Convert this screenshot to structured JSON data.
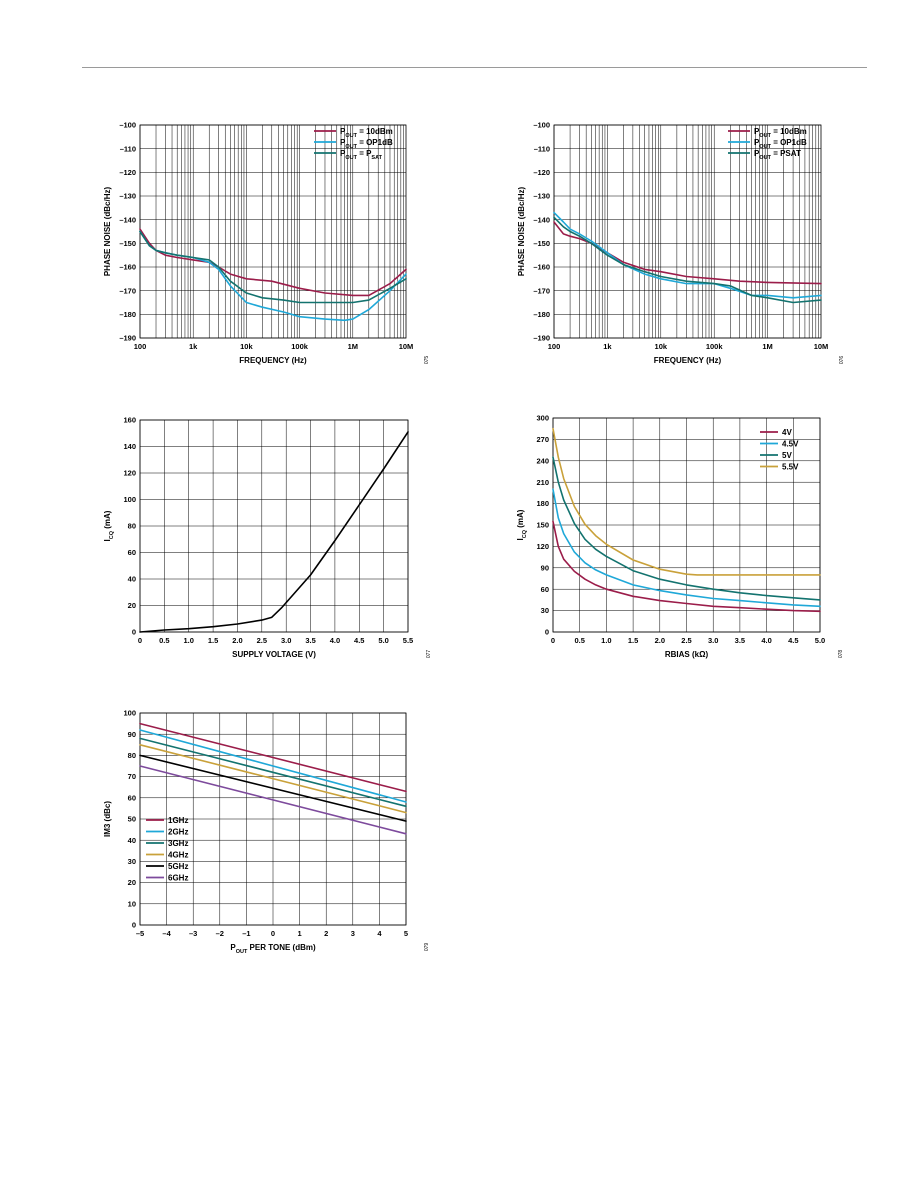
{
  "colors": {
    "maroon": "#9b1d4a",
    "cyan": "#1fa8d8",
    "teal": "#13736f",
    "gold": "#c9a13a",
    "black": "#000000",
    "purple": "#7d4a9c",
    "grid": "#000000"
  },
  "chart_data": [
    {
      "id": "c1",
      "type": "line",
      "xscale": "log",
      "xlim": [
        100,
        10000000
      ],
      "ylim": [
        -190,
        -100
      ],
      "xticks": [
        100,
        1000,
        10000,
        100000,
        1000000,
        10000000
      ],
      "xticklabels": [
        "100",
        "1k",
        "10k",
        "100k",
        "1M",
        "10M"
      ],
      "yticks": [
        -190,
        -180,
        -170,
        -160,
        -150,
        -140,
        -130,
        -120,
        -110,
        -100
      ],
      "yticklabels": [
        "–190",
        "–180",
        "–170",
        "–160",
        "–150",
        "–140",
        "–130",
        "–120",
        "–110",
        "–100"
      ],
      "xlabel": "FREQUENCY (Hz)",
      "ylabel": "PHASE NOISE (dBc/Hz)",
      "note": "075",
      "legend_position": "top-right",
      "series": [
        {
          "name": "P_OUT = 10dBm",
          "legend": [
            {
              "t": "P"
            },
            {
              "t": "OUT",
              "sub": true
            },
            {
              "t": " = 10dBm"
            }
          ],
          "color": "maroon",
          "x": [
            100,
            150,
            200,
            300,
            500,
            1000,
            2000,
            3000,
            5000,
            10000,
            30000,
            100000,
            300000,
            1000000,
            2000000,
            5000000,
            10000000
          ],
          "y": [
            -144,
            -150,
            -153,
            -155,
            -156,
            -157,
            -158,
            -160,
            -163,
            -165,
            -166,
            -169,
            -171,
            -172,
            -172,
            -167,
            -161
          ]
        },
        {
          "name": "P_OUT = OP1dB",
          "legend": [
            {
              "t": "P"
            },
            {
              "t": "OUT",
              "sub": true
            },
            {
              "t": " = OP1dB"
            }
          ],
          "color": "cyan",
          "x": [
            100,
            150,
            200,
            300,
            500,
            1000,
            2000,
            3000,
            5000,
            10000,
            20000,
            50000,
            100000,
            300000,
            700000,
            1000000,
            2000000,
            5000000,
            10000000
          ],
          "y": [
            -145,
            -151,
            -153,
            -154,
            -155,
            -156,
            -158,
            -161,
            -168,
            -175,
            -177,
            -179,
            -181,
            -182,
            -182.5,
            -182,
            -178,
            -170,
            -163
          ]
        },
        {
          "name": "P_OUT = P_SAT",
          "legend": [
            {
              "t": "P"
            },
            {
              "t": "OUT",
              "sub": true
            },
            {
              "t": " = P"
            },
            {
              "t": "SAT",
              "sub": true
            }
          ],
          "color": "teal",
          "x": [
            100,
            150,
            200,
            300,
            500,
            1000,
            2000,
            3000,
            5000,
            10000,
            20000,
            50000,
            100000,
            300000,
            1000000,
            2000000,
            5000000,
            10000000
          ],
          "y": [
            -145,
            -151,
            -153,
            -154,
            -155,
            -156,
            -157,
            -160,
            -166,
            -171,
            -173,
            -174,
            -175,
            -175,
            -175,
            -174,
            -169,
            -165
          ]
        }
      ]
    },
    {
      "id": "c2",
      "type": "line",
      "xscale": "log",
      "xlim": [
        100,
        10000000
      ],
      "ylim": [
        -190,
        -100
      ],
      "xticks": [
        100,
        1000,
        10000,
        100000,
        1000000,
        10000000
      ],
      "xticklabels": [
        "100",
        "1k",
        "10k",
        "100k",
        "1M",
        "10M"
      ],
      "yticks": [
        -190,
        -180,
        -170,
        -160,
        -150,
        -140,
        -130,
        -120,
        -110,
        -100
      ],
      "yticklabels": [
        "–190",
        "–180",
        "–170",
        "–160",
        "–150",
        "–140",
        "–130",
        "–120",
        "–110",
        "–100"
      ],
      "xlabel": "FREQUENCY (Hz)",
      "ylabel": "PHASE NOISE (dBc/Hz)",
      "note": "076",
      "legend_position": "top-right",
      "series": [
        {
          "name": "P_OUT = 10dBm",
          "legend": [
            {
              "t": "P"
            },
            {
              "t": "OUT",
              "sub": true
            },
            {
              "t": " = 10dBm"
            }
          ],
          "color": "maroon",
          "x": [
            100,
            150,
            200,
            300,
            500,
            1000,
            2000,
            5000,
            10000,
            30000,
            100000,
            300000,
            1000000,
            10000000
          ],
          "y": [
            -141,
            -146,
            -147,
            -148,
            -150,
            -154,
            -158,
            -161,
            -162,
            -164,
            -165,
            -166,
            -166.5,
            -167
          ]
        },
        {
          "name": "P_OUT = OP1dB",
          "legend": [
            {
              "t": "P"
            },
            {
              "t": "OUT",
              "sub": true
            },
            {
              "t": " = OP1dB"
            }
          ],
          "color": "cyan",
          "x": [
            100,
            150,
            200,
            300,
            500,
            1000,
            2000,
            5000,
            10000,
            30000,
            100000,
            200000,
            500000,
            1000000,
            3000000,
            10000000
          ],
          "y": [
            -137,
            -141,
            -144,
            -146,
            -149,
            -154,
            -159,
            -163,
            -165,
            -167,
            -167,
            -169,
            -172,
            -172,
            -173,
            -172
          ]
        },
        {
          "name": "P_OUT = PSAT",
          "legend": [
            {
              "t": "P"
            },
            {
              "t": "OUT",
              "sub": true
            },
            {
              "t": " = PSAT"
            }
          ],
          "color": "teal",
          "x": [
            100,
            150,
            200,
            300,
            500,
            1000,
            2000,
            5000,
            10000,
            30000,
            100000,
            200000,
            500000,
            1000000,
            3000000,
            10000000
          ],
          "y": [
            -139,
            -143,
            -145,
            -147,
            -150,
            -155,
            -159,
            -162,
            -164,
            -166,
            -167,
            -168,
            -172,
            -173,
            -175,
            -174
          ]
        }
      ]
    },
    {
      "id": "c3",
      "type": "line",
      "xscale": "linear",
      "xlim": [
        0,
        5.5
      ],
      "ylim": [
        0,
        160
      ],
      "xticks": [
        0,
        0.5,
        1.0,
        1.5,
        2.0,
        2.5,
        3.0,
        3.5,
        4.0,
        4.5,
        5.0,
        5.5
      ],
      "xticklabels": [
        "0",
        "0.5",
        "1.0",
        "1.5",
        "2.0",
        "2.5",
        "3.0",
        "3.5",
        "4.0",
        "4.5",
        "5.0",
        "5.5"
      ],
      "yticks": [
        0,
        20,
        40,
        60,
        80,
        100,
        120,
        140,
        160
      ],
      "yticklabels": [
        "0",
        "20",
        "40",
        "60",
        "80",
        "100",
        "120",
        "140",
        "160"
      ],
      "xlabel": "SUPPLY VOLTAGE (V)",
      "ylabel": "I_CQ (mA)",
      "ylabel_parts": [
        {
          "t": "I"
        },
        {
          "t": "CQ",
          "sub": true
        },
        {
          "t": " (mA)"
        }
      ],
      "note": "077",
      "series": [
        {
          "color": "black",
          "x": [
            0,
            0.5,
            1.0,
            1.5,
            2.0,
            2.5,
            2.7,
            2.9,
            3.5,
            4.0,
            4.5,
            5.0,
            5.5
          ],
          "y": [
            0,
            1.5,
            2.5,
            4,
            6,
            9,
            11,
            18,
            43,
            69,
            96,
            123,
            151
          ]
        }
      ]
    },
    {
      "id": "c4",
      "type": "line",
      "xscale": "linear",
      "xlim": [
        0,
        5.0
      ],
      "ylim": [
        0,
        300
      ],
      "xticks": [
        0,
        0.5,
        1.0,
        1.5,
        2.0,
        2.5,
        3.0,
        3.5,
        4.0,
        4.5,
        5.0
      ],
      "xticklabels": [
        "0",
        "0.5",
        "1.0",
        "1.5",
        "2.0",
        "2.5",
        "3.0",
        "3.5",
        "4.0",
        "4.5",
        "5.0"
      ],
      "yticks": [
        0,
        30,
        60,
        90,
        120,
        150,
        180,
        210,
        240,
        270,
        300
      ],
      "yticklabels": [
        "0",
        "30",
        "60",
        "90",
        "120",
        "150",
        "180",
        "210",
        "240",
        "270",
        "300"
      ],
      "xlabel": "RBIAS (kΩ)",
      "ylabel": "I_CQ (mA)",
      "ylabel_parts": [
        {
          "t": "I"
        },
        {
          "t": "CQ",
          "sub": true
        },
        {
          "t": " (mA)"
        }
      ],
      "note": "078",
      "legend_position": "top-right",
      "series": [
        {
          "name": "4V",
          "legend": [
            {
              "t": "4V"
            }
          ],
          "color": "maroon",
          "x": [
            0,
            0.1,
            0.2,
            0.4,
            0.6,
            0.8,
            1.0,
            1.5,
            2.0,
            2.5,
            3.0,
            3.5,
            4.0,
            4.5,
            5.0
          ],
          "y": [
            155,
            120,
            102,
            85,
            74,
            66,
            60,
            50,
            44,
            40,
            36,
            34,
            32,
            30,
            29
          ]
        },
        {
          "name": "4.5V",
          "legend": [
            {
              "t": "4.5V"
            }
          ],
          "color": "cyan",
          "x": [
            0,
            0.1,
            0.2,
            0.4,
            0.6,
            0.8,
            1.0,
            1.5,
            2.0,
            2.5,
            3.0,
            3.5,
            4.0,
            4.5,
            5.0
          ],
          "y": [
            200,
            160,
            138,
            112,
            97,
            87,
            80,
            66,
            58,
            52,
            47,
            44,
            41,
            38,
            36
          ]
        },
        {
          "name": "5V",
          "legend": [
            {
              "t": "5V"
            }
          ],
          "color": "teal",
          "x": [
            0,
            0.1,
            0.2,
            0.4,
            0.6,
            0.8,
            1.0,
            1.5,
            2.0,
            2.5,
            3.0,
            3.5,
            4.0,
            4.5,
            5.0
          ],
          "y": [
            245,
            210,
            185,
            152,
            130,
            116,
            106,
            86,
            74,
            66,
            60,
            55,
            51,
            48,
            45
          ]
        },
        {
          "name": "5.5V",
          "legend": [
            {
              "t": "5.5V"
            }
          ],
          "color": "gold",
          "x": [
            0,
            0.1,
            0.2,
            0.4,
            0.6,
            0.8,
            1.0,
            1.5,
            2.0,
            2.5,
            2.7,
            3.0,
            4.0,
            5.0
          ],
          "y": [
            285,
            245,
            215,
            176,
            151,
            135,
            123,
            101,
            88,
            81,
            80,
            80,
            80,
            80
          ]
        }
      ]
    },
    {
      "id": "c5",
      "type": "line",
      "xscale": "linear",
      "xlim": [
        -5,
        5
      ],
      "ylim": [
        0,
        100
      ],
      "xticks": [
        -5,
        -4,
        -3,
        -2,
        -1,
        0,
        1,
        2,
        3,
        4,
        5
      ],
      "xticklabels": [
        "–5",
        "–4",
        "–3",
        "–2",
        "–1",
        "0",
        "1",
        "2",
        "3",
        "4",
        "5"
      ],
      "yticks": [
        0,
        10,
        20,
        30,
        40,
        50,
        60,
        70,
        80,
        90,
        100
      ],
      "yticklabels": [
        "0",
        "10",
        "20",
        "30",
        "40",
        "50",
        "60",
        "70",
        "80",
        "90",
        "100"
      ],
      "xlabel": "P_OUT PER TONE (dBm)",
      "xlabel_parts": [
        {
          "t": "P"
        },
        {
          "t": "OUT",
          "sub": true
        },
        {
          "t": " PER TONE (dBm)"
        }
      ],
      "ylabel": "IM3 (dBc)",
      "note": "079",
      "legend_position": "middle-left",
      "series": [
        {
          "name": "1GHz",
          "legend": [
            {
              "t": "1GHz"
            }
          ],
          "color": "maroon",
          "x": [
            -5,
            5
          ],
          "y": [
            95,
            63
          ]
        },
        {
          "name": "2GHz",
          "legend": [
            {
              "t": "2GHz"
            }
          ],
          "color": "cyan",
          "x": [
            -5,
            5
          ],
          "y": [
            92,
            58
          ]
        },
        {
          "name": "3GHz",
          "legend": [
            {
              "t": "3GHz"
            }
          ],
          "color": "teal",
          "x": [
            -5,
            5
          ],
          "y": [
            88,
            56
          ]
        },
        {
          "name": "4GHz",
          "legend": [
            {
              "t": "4GHz"
            }
          ],
          "color": "gold",
          "x": [
            -5,
            5
          ],
          "y": [
            85,
            53
          ]
        },
        {
          "name": "5GHz",
          "legend": [
            {
              "t": "5GHz"
            }
          ],
          "color": "black",
          "x": [
            -5,
            5
          ],
          "y": [
            80,
            49
          ]
        },
        {
          "name": "6GHz",
          "legend": [
            {
              "t": "6GHz"
            }
          ],
          "color": "purple",
          "x": [
            -5,
            5
          ],
          "y": [
            75,
            43
          ]
        }
      ]
    }
  ]
}
